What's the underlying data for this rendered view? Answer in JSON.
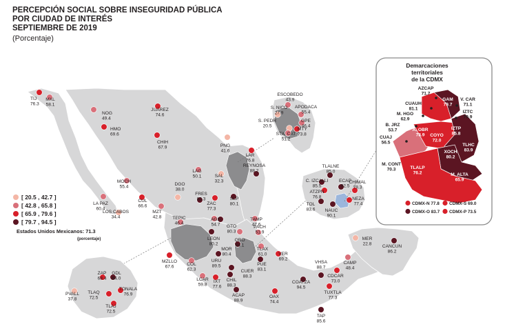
{
  "title_lines": [
    "PERCEPCIÓN SOCIAL SOBRE INSEGURIDAD PÚBLICA",
    "POR CIUDAD DE INTERÉS",
    "SEPTIEMBRE DE 2019"
  ],
  "subtitle": "(Porcentaje)",
  "colors": {
    "class1": "#f4b6a6",
    "class2": "#d9707a",
    "class3": "#d8202a",
    "class4": "#5b1522",
    "land": "#d7d7d8",
    "border": "#ffffff",
    "highlight_state": "#8c8c8e",
    "water_blue": "#9bb6dc"
  },
  "legend": [
    {
      "label": "[ 20.5 , 42.7 ]",
      "class": "class1"
    },
    {
      "label": "[ 42.8 , 65.8 ]",
      "class": "class2"
    },
    {
      "label": "[ 65.9 , 79.6 ]",
      "class": "class3"
    },
    {
      "label": "[ 79.7 , 94.5 ]",
      "class": "class4"
    }
  ],
  "national": {
    "label": "Estados Unidos Mexicanos:",
    "value": "71.3",
    "unit": "(porcentaje)"
  },
  "cdmx": {
    "title_lines": [
      "Demarcaciones territoriales",
      "de la CDMX"
    ],
    "boroughs": [
      {
        "name": "AZCAP",
        "value": "71.7"
      },
      {
        "name": "GAM",
        "value": "79.7"
      },
      {
        "name": "CUAUH",
        "value": "81.1"
      },
      {
        "name": "V. CAR",
        "value": "71.1"
      },
      {
        "name": "M. HGO",
        "value": "62.9"
      },
      {
        "name": "IZTC",
        "value": "79.9"
      },
      {
        "name": "B. JRZ",
        "value": "53.7"
      },
      {
        "name": "A. OBR",
        "value": "78.9"
      },
      {
        "name": "IZTP",
        "value": "85.8"
      },
      {
        "name": "COYO",
        "value": "72.0"
      },
      {
        "name": "CUAJ",
        "value": "56.5"
      },
      {
        "name": "TLHC",
        "value": "83.9"
      },
      {
        "name": "XOCH",
        "value": "80.2"
      },
      {
        "name": "M. CONT",
        "value": "70.3"
      },
      {
        "name": "TLALP",
        "value": "76.2"
      },
      {
        "name": "M. ALTA",
        "value": "65.9"
      }
    ],
    "regions": [
      {
        "name": "CDMX-N",
        "value": "77.8"
      },
      {
        "name": "CDMX-S",
        "value": "69.0"
      },
      {
        "name": "CDMX-O",
        "value": "83.7"
      },
      {
        "name": "CDMX-P",
        "value": "73.5"
      }
    ]
  },
  "cities": [
    {
      "name": "TIJ",
      "value": "76.3"
    },
    {
      "name": "MXL",
      "value": "58.1"
    },
    {
      "name": "NOG",
      "value": "49.4"
    },
    {
      "name": "JUÁREZ",
      "value": "74.6"
    },
    {
      "name": "HMO",
      "value": "69.6"
    },
    {
      "name": "CHIH",
      "value": "67.9"
    },
    {
      "name": "MOCH",
      "value": "55.4"
    },
    {
      "name": "CUL",
      "value": "66.6"
    },
    {
      "name": "LA PAZ",
      "value": "60.4"
    },
    {
      "name": "LOS CABOS",
      "value": "34.4"
    },
    {
      "name": "MZT",
      "value": "42.8"
    },
    {
      "name": "DGO",
      "value": "38.0"
    },
    {
      "name": "LAG",
      "value": "50.1"
    },
    {
      "name": "TEPIC",
      "value": "46.4"
    },
    {
      "name": "FRES",
      "value": "83.3"
    },
    {
      "name": "PNG",
      "value": "41.6"
    },
    {
      "name": "SAL",
      "value": "32.3"
    },
    {
      "name": "LAR",
      "value": "76.8"
    },
    {
      "name": "REYNOSA",
      "value": "88.2"
    },
    {
      "name": "ZAC",
      "value": "77.3"
    },
    {
      "name": "AGS",
      "value": "54.7"
    },
    {
      "name": "SLP",
      "value": "80.1"
    },
    {
      "name": "TAMP",
      "value": "47.6"
    },
    {
      "name": "GTO",
      "value": "80.3"
    },
    {
      "name": "LEON",
      "value": "80.2"
    },
    {
      "name": "QRO",
      "value": "64.1"
    },
    {
      "name": "MOR",
      "value": "80.4"
    },
    {
      "name": "PACH",
      "value": "51.9"
    },
    {
      "name": "TLAX",
      "value": "61.0"
    },
    {
      "name": "PUE",
      "value": "83.1"
    },
    {
      "name": "VER",
      "value": "69.2"
    },
    {
      "name": "MZLLO",
      "value": "67.6"
    },
    {
      "name": "COL",
      "value": "62.3"
    },
    {
      "name": "URU",
      "value": "89.5"
    },
    {
      "name": "LCAR",
      "value": "59.8"
    },
    {
      "name": "IXT",
      "value": "77.6"
    },
    {
      "name": "CHIL",
      "value": "88.3"
    },
    {
      "name": "CUER",
      "value": "88.3"
    },
    {
      "name": "ACAP",
      "value": "88.9"
    },
    {
      "name": "OAX",
      "value": "74.4"
    },
    {
      "name": "COATZA",
      "value": "94.5"
    },
    {
      "name": "VHSA",
      "value": "88.7"
    },
    {
      "name": "CDCAR",
      "value": "73.0"
    },
    {
      "name": "CAMP",
      "value": "48.4"
    },
    {
      "name": "MER",
      "value": "22.8"
    },
    {
      "name": "CANCUN",
      "value": "86.2"
    },
    {
      "name": "TUXTLA",
      "value": "77.3"
    },
    {
      "name": "TAP",
      "value": "85.6"
    },
    {
      "name": "ESCOBEDO",
      "value": "43.9"
    },
    {
      "name": "S. NICO",
      "value": "27.9"
    },
    {
      "name": "APODACA",
      "value": "55.4"
    },
    {
      "name": "S. PEDR",
      "value": "20.5"
    },
    {
      "name": "GPE",
      "value": "46.4"
    },
    {
      "name": "MTY",
      "value": "73.8"
    },
    {
      "name": "STA. CAT",
      "value": "51.2"
    },
    {
      "name": "TLALNE",
      "value": "85.0"
    },
    {
      "name": "C. IZCALLI",
      "value": "85.5"
    },
    {
      "name": "ATZPN",
      "value": "76.8"
    },
    {
      "name": "ECAP",
      "value": "92.5"
    },
    {
      "name": "CHIMAL",
      "value": "78.3"
    },
    {
      "name": "TOL",
      "value": "83.6"
    },
    {
      "name": "NAUC",
      "value": "90.1"
    },
    {
      "name": "NEZA",
      "value": "77.4"
    },
    {
      "name": "ZAP",
      "value": "68.4"
    },
    {
      "name": "GDL",
      "value": "84.0"
    },
    {
      "name": "TLAQ",
      "value": "72.5"
    },
    {
      "name": "TONALA",
      "value": "76.9"
    },
    {
      "name": "PVALL",
      "value": "37.8"
    },
    {
      "name": "TLAJ",
      "value": "72.5"
    }
  ]
}
